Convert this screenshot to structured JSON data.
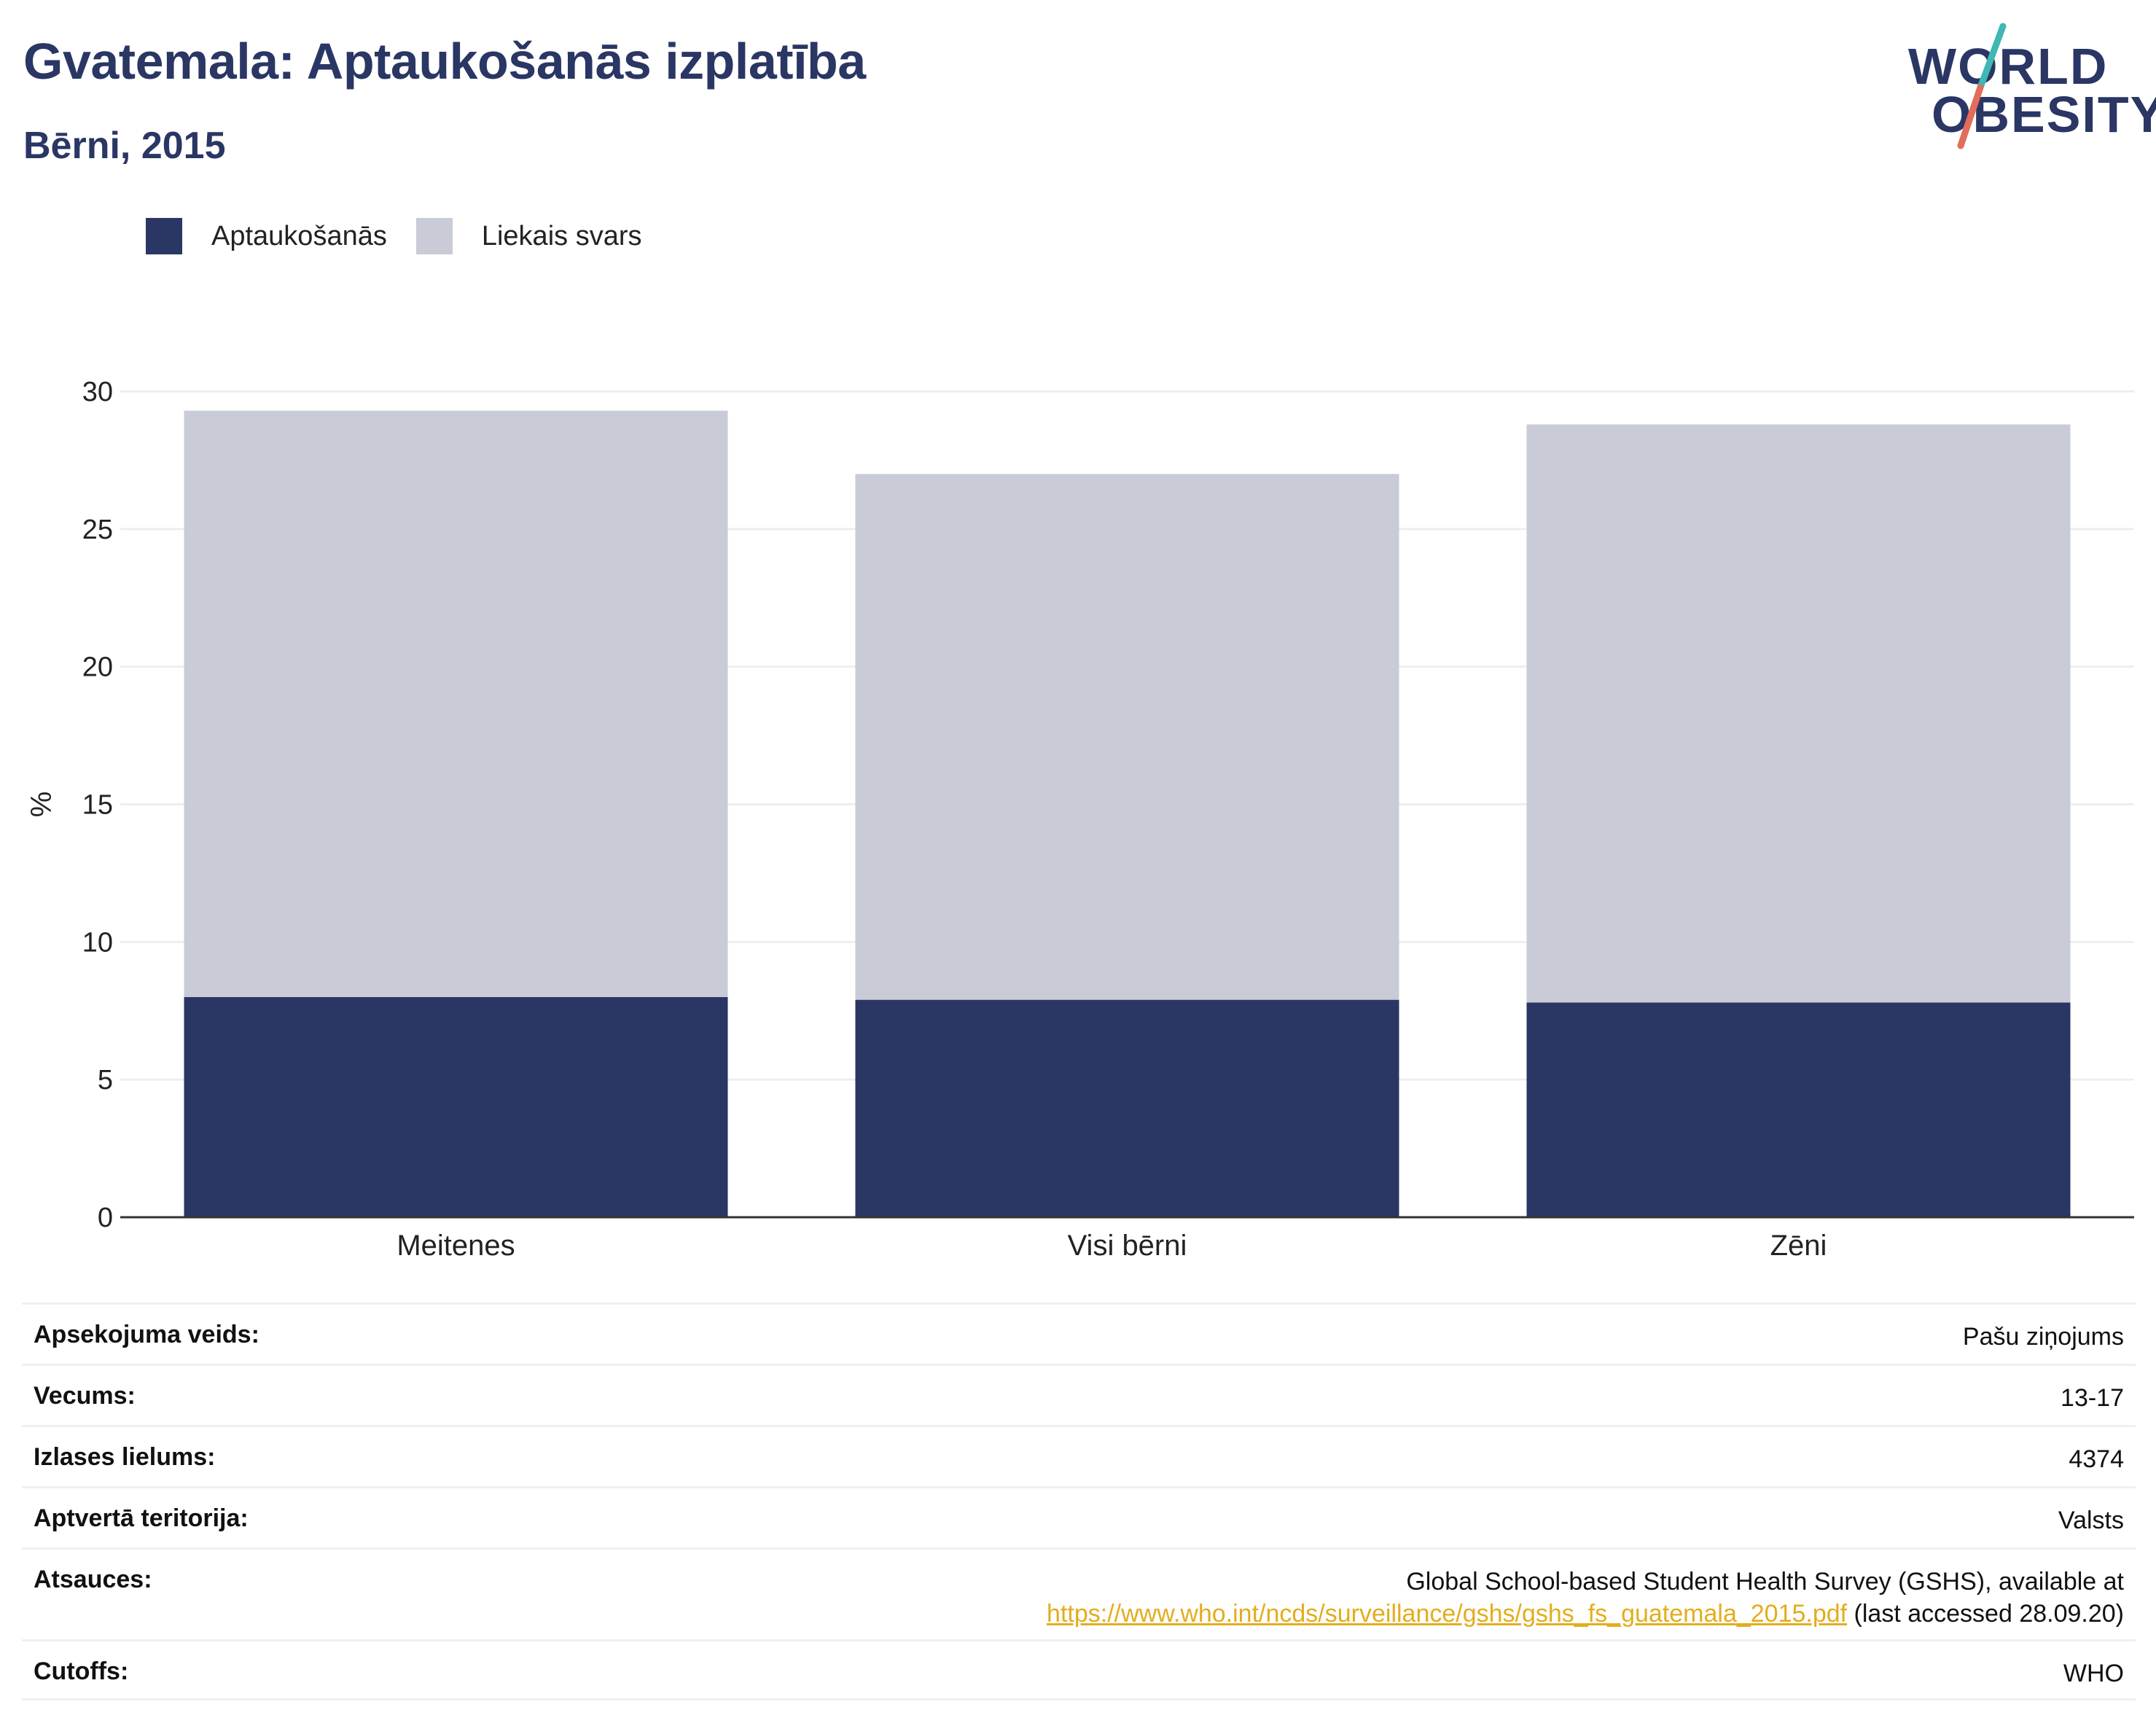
{
  "header": {
    "title": "Gvatemala: Aptaukošanās izplatība",
    "subtitle": "Bērni, 2015"
  },
  "logo": {
    "line1": "WORLD",
    "line2": "OBESITY",
    "colors": {
      "navy": "#2a3664",
      "teal": "#3fb8b4",
      "coral": "#e26d5a"
    }
  },
  "chart_data": {
    "type": "bar",
    "stacked": true,
    "categories": [
      "Meitenes",
      "Visi bērni",
      "Zēni"
    ],
    "series": [
      {
        "name": "Aptaukošanās",
        "color": "#2a3664",
        "values": [
          8.0,
          7.9,
          7.8
        ]
      },
      {
        "name": "Liekais svars",
        "color": "#c9cbd6",
        "values": [
          21.3,
          19.1,
          21.0
        ]
      }
    ],
    "ylabel": "%",
    "ylim": [
      0,
      30
    ],
    "yticks": [
      0,
      5,
      10,
      15,
      20,
      25,
      30
    ],
    "grid": true,
    "legend_position": "top-left"
  },
  "info": {
    "rows": [
      {
        "label": "Apsekojuma veids:",
        "value": "Pašu ziņojums"
      },
      {
        "label": "Vecums:",
        "value": "13-17"
      },
      {
        "label": "Izlases lielums:",
        "value": "4374"
      },
      {
        "label": "Aptvertā teritorija:",
        "value": "Valsts"
      }
    ],
    "references": {
      "label": "Atsauces:",
      "line1": "Global School-based Student Health Survey (GSHS), available at",
      "link": "https://www.who.int/ncds/surveillance/gshs/gshs_fs_guatemala_2015.pdf",
      "suffix": " (last accessed 28.09.20)"
    },
    "cutoffs": {
      "label": "Cutoffs:",
      "value": "WHO"
    }
  }
}
